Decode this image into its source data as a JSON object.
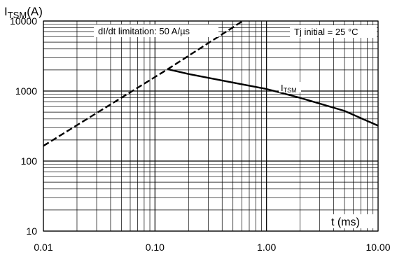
{
  "chart_data": {
    "type": "line",
    "y_title": {
      "main": "I",
      "sub": "TSM",
      "unit": "(A)"
    },
    "x_title": "t (ms)",
    "x_scale": "log",
    "y_scale": "log",
    "xlim": [
      0.01,
      10.0
    ],
    "ylim": [
      10,
      10000
    ],
    "grid": true,
    "x_ticks": [
      {
        "value": 0.01,
        "label": "0.01"
      },
      {
        "value": 0.1,
        "label": "0.10"
      },
      {
        "value": 1,
        "label": "1.00"
      },
      {
        "value": 10,
        "label": "10.00"
      }
    ],
    "y_ticks": [
      {
        "value": 10,
        "label": "10"
      },
      {
        "value": 100,
        "label": "100"
      },
      {
        "value": 1000,
        "label": "1000"
      },
      {
        "value": 10000,
        "label": "10000"
      }
    ],
    "series": [
      {
        "name": "dI/dt limitation: 50 A/µs",
        "style": "dashed",
        "color": "#000000",
        "x": [
          0.01,
          0.13,
          0.6
        ],
        "y": [
          165,
          2050,
          9800
        ]
      },
      {
        "name": "ITSM",
        "style": "solid",
        "color": "#000000",
        "x": [
          0.13,
          0.2,
          0.5,
          1.0,
          2.0,
          5.0,
          10.0
        ],
        "y": [
          2050,
          1750,
          1320,
          1070,
          800,
          520,
          320
        ]
      }
    ],
    "annotations": {
      "didt_label": "dI/dt limitation: 50 A/µs",
      "tj_label": "Tj initial = 25 °C",
      "curve_label": {
        "main": "I",
        "sub": "TSM"
      }
    }
  }
}
